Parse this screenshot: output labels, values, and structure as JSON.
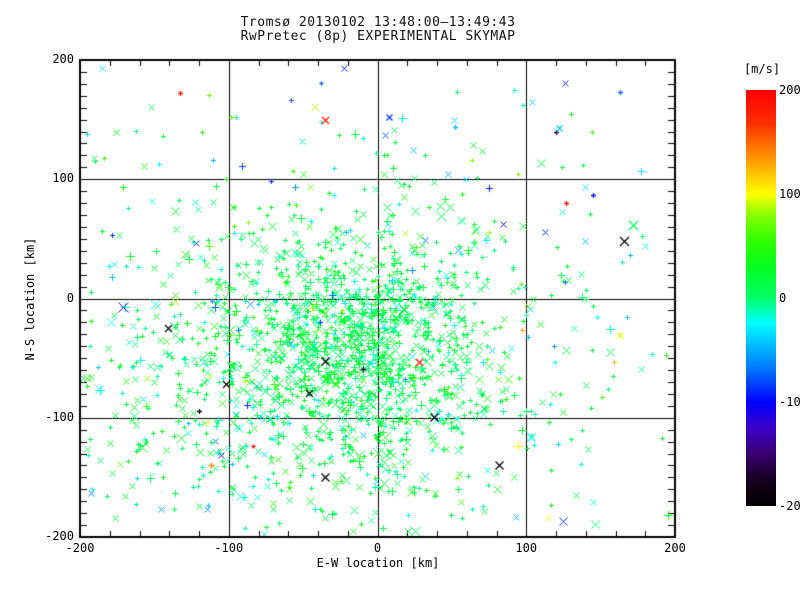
{
  "window": {
    "background": "#ffffff"
  },
  "title": {
    "line1": "Tromsø 20130102 13:48:00–13:49:43",
    "line2": "RwPretec (8p) EXPERIMENTAL SKYMAP"
  },
  "colorbar": {
    "label": "[m/s]",
    "ticks": [
      200,
      100,
      0,
      -100,
      -200
    ],
    "min": -200,
    "max": 200
  },
  "chart_data": {
    "type": "scatter",
    "title": "Tromsø 20130102 13:48:00–13:49:43 — RwPretec (8p) EXPERIMENTAL SKYMAP",
    "xlabel": "E-W location [km]",
    "ylabel": "N-S location [km]",
    "xlim": [
      -200,
      200
    ],
    "ylim": [
      -200,
      200
    ],
    "x_ticks": [
      -200,
      -100,
      0,
      100,
      200
    ],
    "y_ticks": [
      -200,
      -100,
      0,
      100,
      200
    ],
    "x_minor_step": 20,
    "y_minor_step": 10,
    "grid": true,
    "grid_values": [
      -100,
      0,
      100
    ],
    "frame_color": "#000000",
    "legend_position": "right-colorbar",
    "color_scale": {
      "unit": "m/s",
      "min": -200,
      "max": 200,
      "stops": [
        [
          0.0,
          "#000000"
        ],
        [
          0.06,
          "#14001e"
        ],
        [
          0.125,
          "#38006e"
        ],
        [
          0.19,
          "#3a00cc"
        ],
        [
          0.25,
          "#0000ff"
        ],
        [
          0.33,
          "#0077ff"
        ],
        [
          0.4,
          "#00ccff"
        ],
        [
          0.44,
          "#00ffff"
        ],
        [
          0.5,
          "#00ff66"
        ],
        [
          0.57,
          "#00ff22"
        ],
        [
          0.64,
          "#33ff00"
        ],
        [
          0.7,
          "#88ff00"
        ],
        [
          0.75,
          "#ffff00"
        ],
        [
          0.84,
          "#ff9100"
        ],
        [
          0.92,
          "#ff3000"
        ],
        [
          1.0,
          "#ff0000"
        ]
      ]
    },
    "markers": [
      "plus",
      "cross"
    ],
    "point_field": {
      "description": "Approx 2200 meteor-echo points; velocity (m/s) sets color via color_scale. Dense green core just south-west of origin, broad scatter over lower-left half, sparse upper-right quadrant.",
      "seed": 1337,
      "marker_mix": {
        "plus": 0.55,
        "cross": 0.45
      },
      "clusters": [
        {
          "name": "dense-core",
          "count": 820,
          "cx": -10,
          "cy": -40,
          "sx": 40,
          "sy": 45,
          "v_mean": 14,
          "v_sd": 15
        },
        {
          "name": "inner-halo",
          "count": 600,
          "cx": -40,
          "cy": -45,
          "sx": 80,
          "sy": 65,
          "v_mean": 10,
          "v_sd": 20
        },
        {
          "name": "sw-field",
          "count": 430,
          "cx": -80,
          "cy": -90,
          "sx": 105,
          "sy": 75,
          "v_mean": 8,
          "v_sd": 22
        },
        {
          "name": "wide-scatter",
          "count": 240,
          "cx": -20,
          "cy": -30,
          "sx": 150,
          "sy": 130,
          "v_mean": -5,
          "v_sd": 50
        },
        {
          "name": "upper-sparse",
          "count": 70,
          "cx": 0,
          "cy": 110,
          "sx": 130,
          "sy": 55,
          "v_mean": -5,
          "v_sd": 45
        }
      ]
    },
    "outliers": [
      {
        "x": -133,
        "y": 172,
        "v": 195,
        "m": "plus",
        "s": 5
      },
      {
        "x": -35,
        "y": 150,
        "v": 185,
        "m": "cross",
        "s": 7
      },
      {
        "x": -38,
        "y": 181,
        "v": -75,
        "m": "plus",
        "s": 4
      },
      {
        "x": 8,
        "y": 152,
        "v": -85,
        "m": "cross",
        "s": 6
      },
      {
        "x": 120,
        "y": 140,
        "v": -160,
        "m": "plus",
        "s": 5
      },
      {
        "x": 127,
        "y": 80,
        "v": 195,
        "m": "plus",
        "s": 5
      },
      {
        "x": 145,
        "y": 87,
        "v": -95,
        "m": "plus",
        "s": 5
      },
      {
        "x": 163,
        "y": 173,
        "v": -70,
        "m": "plus",
        "s": 5
      },
      {
        "x": 166,
        "y": 48,
        "v": -195,
        "m": "cross",
        "s": 9
      },
      {
        "x": 172,
        "y": 62,
        "v": 5,
        "m": "cross",
        "s": 9
      },
      {
        "x": 52,
        "y": 144,
        "v": -45,
        "m": "plus",
        "s": 5
      },
      {
        "x": 122,
        "y": 143,
        "v": -40,
        "m": "cross",
        "s": 6
      },
      {
        "x": 28,
        "y": -53,
        "v": 190,
        "m": "cross",
        "s": 7
      },
      {
        "x": -35,
        "y": -52,
        "v": -200,
        "m": "cross",
        "s": 8
      },
      {
        "x": -10,
        "y": -59,
        "v": -190,
        "m": "plus",
        "s": 6
      },
      {
        "x": -46,
        "y": -79,
        "v": -200,
        "m": "cross",
        "s": 7
      },
      {
        "x": 38,
        "y": -99,
        "v": -195,
        "m": "cross",
        "s": 8
      },
      {
        "x": -35,
        "y": -150,
        "v": -200,
        "m": "cross",
        "s": 8
      },
      {
        "x": -102,
        "y": -72,
        "v": -195,
        "m": "cross",
        "s": 7
      },
      {
        "x": -120,
        "y": -94,
        "v": -190,
        "m": "plus",
        "s": 5
      },
      {
        "x": -112,
        "y": -140,
        "v": 140,
        "m": "plus",
        "s": 6
      },
      {
        "x": -84,
        "y": -124,
        "v": 200,
        "m": "plus",
        "s": 4
      },
      {
        "x": 82,
        "y": -140,
        "v": -195,
        "m": "cross",
        "s": 8
      },
      {
        "x": -141,
        "y": -25,
        "v": -190,
        "m": "cross",
        "s": 7
      },
      {
        "x": 163,
        "y": -31,
        "v": 95,
        "m": "cross",
        "s": 6
      },
      {
        "x": 103,
        "y": -116,
        "v": -25,
        "m": "cross",
        "s": 8
      }
    ]
  }
}
